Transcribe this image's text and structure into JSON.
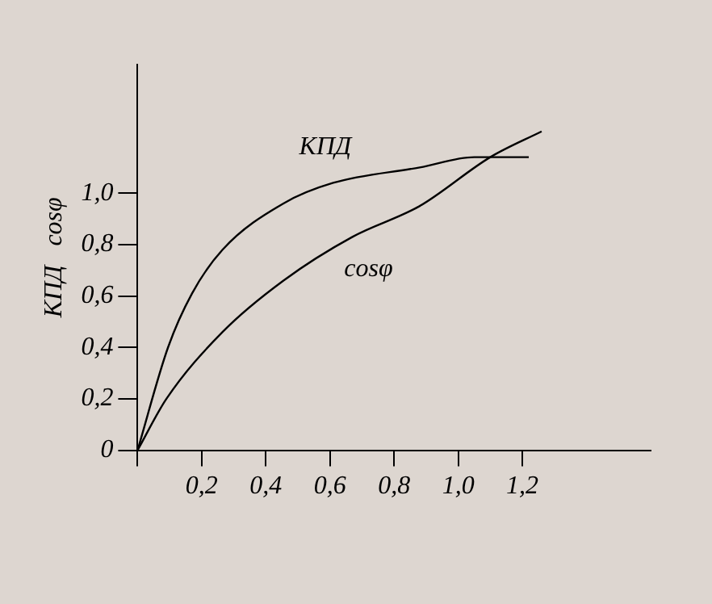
{
  "chart_data": {
    "type": "line",
    "ylabel": "КПД   cosφ",
    "xlim": [
      0,
      1.6
    ],
    "ylim": [
      0,
      1.5
    ],
    "xticks": [
      {
        "value": 0,
        "label": null
      },
      {
        "value": 0.2,
        "label": "0,2"
      },
      {
        "value": 0.4,
        "label": "0,4"
      },
      {
        "value": 0.6,
        "label": "0,6"
      },
      {
        "value": 0.8,
        "label": "0,8"
      },
      {
        "value": 1.0,
        "label": "1,0"
      },
      {
        "value": 1.2,
        "label": "1,2"
      }
    ],
    "yticks": [
      {
        "value": 0,
        "label": "0"
      },
      {
        "value": 0.2,
        "label": "0,2"
      },
      {
        "value": 0.4,
        "label": "0,4"
      },
      {
        "value": 0.6,
        "label": "0,6"
      },
      {
        "value": 0.8,
        "label": "0,8"
      },
      {
        "value": 1.0,
        "label": "1,0"
      }
    ],
    "grid": false,
    "legend": false,
    "marker": "none",
    "line_style": "solid",
    "series": [
      {
        "name": "КПД",
        "color": "#000000",
        "x": [
          0,
          0.095,
          0.17,
          0.265,
          0.455,
          0.61,
          0.88,
          1.05,
          1.22
        ],
        "values": [
          0,
          0.4,
          0.61,
          0.78,
          0.96,
          1.04,
          1.1,
          1.14,
          1.14
        ]
      },
      {
        "name": "cosφ",
        "color": "#000000",
        "x": [
          0,
          0.09,
          0.265,
          0.455,
          0.67,
          0.88,
          1.1,
          1.26
        ],
        "values": [
          0,
          0.2,
          0.46,
          0.66,
          0.83,
          0.95,
          1.14,
          1.24
        ]
      }
    ]
  }
}
